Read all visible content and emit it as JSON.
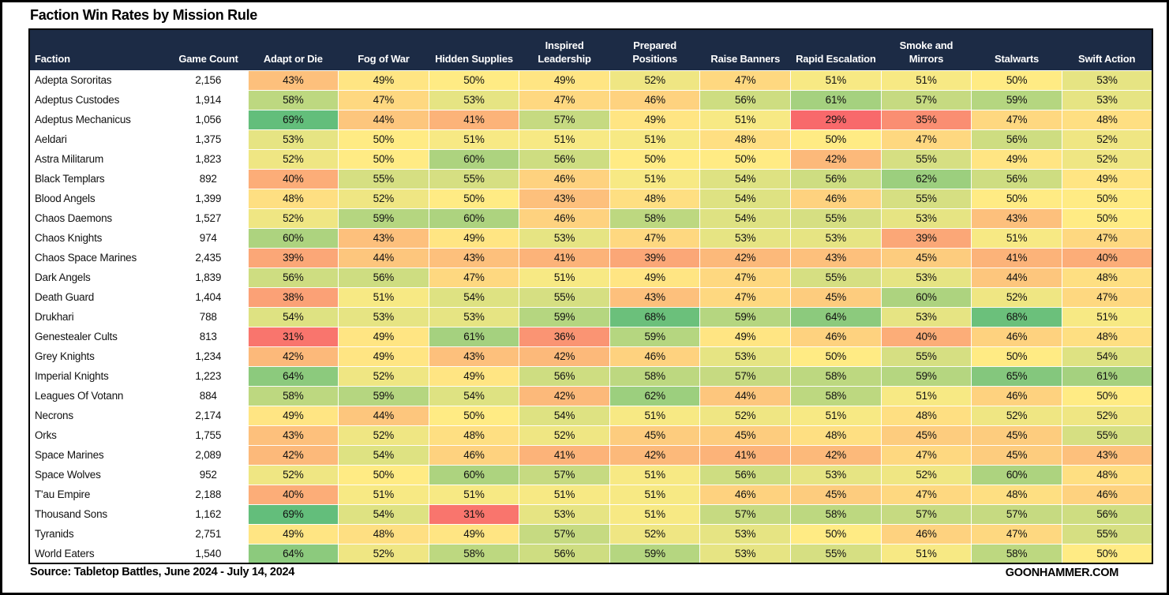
{
  "title": "Faction Win Rates by Mission Rule",
  "footer": {
    "source": "Source: Tabletop Battles, June 2024 - July 14, 2024",
    "brand": "GOONHAMMER.COM"
  },
  "style": {
    "header_bg": "#1c2b45",
    "header_text": "#ffffff"
  },
  "chart_data": {
    "type": "heatmap",
    "columns": [
      "Faction",
      "Game Count",
      "Adapt or Die",
      "Fog of War",
      "Hidden Supplies",
      "Inspired Leadership",
      "Prepared Positions",
      "Raise Banners",
      "Rapid Escalation",
      "Smoke and Mirrors",
      "Stalwarts",
      "Swift Action"
    ],
    "value_suffix": "%",
    "color_scale": {
      "min": {
        "value": 29,
        "color": "#F8696B"
      },
      "mid": {
        "value": 50,
        "color": "#FFEB84"
      },
      "max": {
        "value": 69,
        "color": "#63BE7B"
      }
    },
    "rows": [
      {
        "faction": "Adepta Sororitas",
        "games": "2,156",
        "values": [
          43,
          49,
          50,
          49,
          52,
          47,
          51,
          51,
          50,
          53
        ]
      },
      {
        "faction": "Adeptus Custodes",
        "games": "1,914",
        "values": [
          58,
          47,
          53,
          47,
          46,
          56,
          61,
          57,
          59,
          53
        ]
      },
      {
        "faction": "Adeptus Mechanicus",
        "games": "1,056",
        "values": [
          69,
          44,
          41,
          57,
          49,
          51,
          29,
          35,
          47,
          48
        ]
      },
      {
        "faction": "Aeldari",
        "games": "1,375",
        "values": [
          53,
          50,
          51,
          51,
          51,
          48,
          50,
          47,
          56,
          52
        ]
      },
      {
        "faction": "Astra Militarum",
        "games": "1,823",
        "values": [
          52,
          50,
          60,
          56,
          50,
          50,
          42,
          55,
          49,
          52
        ]
      },
      {
        "faction": "Black Templars",
        "games": "892",
        "values": [
          40,
          55,
          55,
          46,
          51,
          54,
          56,
          62,
          56,
          49
        ]
      },
      {
        "faction": "Blood Angels",
        "games": "1,399",
        "values": [
          48,
          52,
          50,
          43,
          48,
          54,
          46,
          55,
          50,
          50
        ]
      },
      {
        "faction": "Chaos Daemons",
        "games": "1,527",
        "values": [
          52,
          59,
          60,
          46,
          58,
          54,
          55,
          53,
          43,
          50
        ]
      },
      {
        "faction": "Chaos Knights",
        "games": "974",
        "values": [
          60,
          43,
          49,
          53,
          47,
          53,
          53,
          39,
          51,
          47
        ]
      },
      {
        "faction": "Chaos Space Marines",
        "games": "2,435",
        "values": [
          39,
          44,
          43,
          41,
          39,
          42,
          43,
          45,
          41,
          40
        ]
      },
      {
        "faction": "Dark Angels",
        "games": "1,839",
        "values": [
          56,
          56,
          47,
          51,
          49,
          47,
          55,
          53,
          44,
          48
        ]
      },
      {
        "faction": "Death Guard",
        "games": "1,404",
        "values": [
          38,
          51,
          54,
          55,
          43,
          47,
          45,
          60,
          52,
          47
        ]
      },
      {
        "faction": "Drukhari",
        "games": "788",
        "values": [
          54,
          53,
          53,
          59,
          68,
          59,
          64,
          53,
          68,
          51
        ]
      },
      {
        "faction": "Genestealer Cults",
        "games": "813",
        "values": [
          31,
          49,
          61,
          36,
          59,
          49,
          46,
          40,
          46,
          48
        ]
      },
      {
        "faction": "Grey Knights",
        "games": "1,234",
        "values": [
          42,
          49,
          43,
          42,
          46,
          53,
          50,
          55,
          50,
          54
        ]
      },
      {
        "faction": "Imperial Knights",
        "games": "1,223",
        "values": [
          64,
          52,
          49,
          56,
          58,
          57,
          58,
          59,
          65,
          61
        ]
      },
      {
        "faction": "Leagues Of Votann",
        "games": "884",
        "values": [
          58,
          59,
          54,
          42,
          62,
          44,
          58,
          51,
          46,
          50
        ]
      },
      {
        "faction": "Necrons",
        "games": "2,174",
        "values": [
          49,
          44,
          50,
          54,
          51,
          52,
          51,
          48,
          52,
          52
        ]
      },
      {
        "faction": "Orks",
        "games": "1,755",
        "values": [
          43,
          52,
          48,
          52,
          45,
          45,
          48,
          45,
          45,
          55
        ]
      },
      {
        "faction": "Space Marines",
        "games": "2,089",
        "values": [
          42,
          54,
          46,
          41,
          42,
          41,
          42,
          47,
          45,
          43
        ]
      },
      {
        "faction": "Space Wolves",
        "games": "952",
        "values": [
          52,
          50,
          60,
          57,
          51,
          56,
          53,
          52,
          60,
          48
        ]
      },
      {
        "faction": "T'au Empire",
        "games": "2,188",
        "values": [
          40,
          51,
          51,
          51,
          51,
          46,
          45,
          47,
          48,
          46
        ]
      },
      {
        "faction": "Thousand Sons",
        "games": "1,162",
        "values": [
          69,
          54,
          31,
          53,
          51,
          57,
          58,
          57,
          57,
          56
        ]
      },
      {
        "faction": "Tyranids",
        "games": "2,751",
        "values": [
          49,
          48,
          49,
          57,
          52,
          53,
          50,
          46,
          47,
          55
        ]
      },
      {
        "faction": "World Eaters",
        "games": "1,540",
        "values": [
          64,
          52,
          58,
          56,
          59,
          53,
          55,
          51,
          58,
          50
        ]
      }
    ]
  }
}
